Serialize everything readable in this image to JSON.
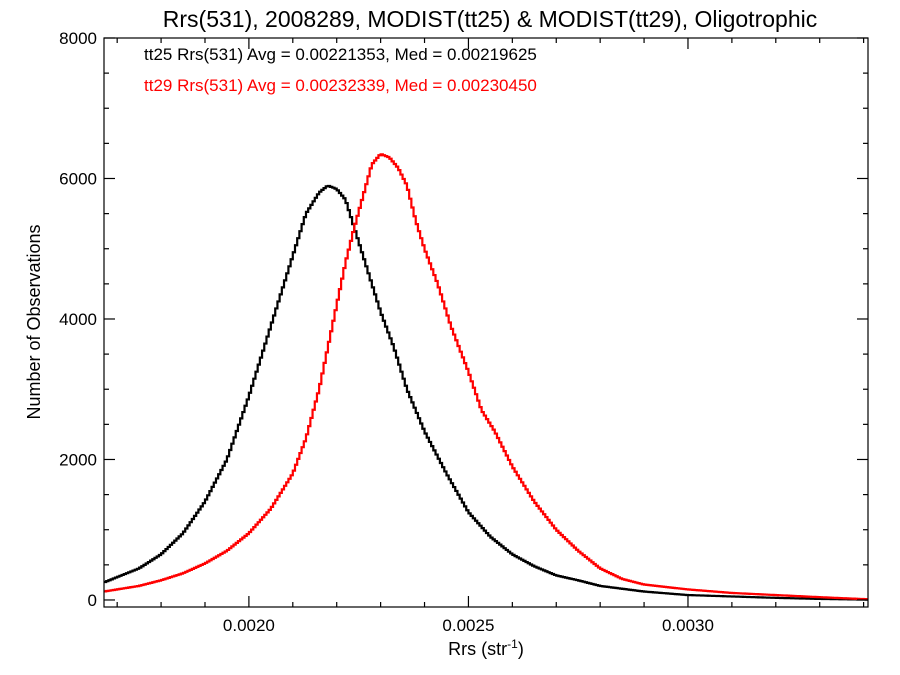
{
  "chart_data": {
    "type": "line",
    "step": true,
    "title": "Rrs(531), 2008289, MODIST(tt25) & MODIST(tt29), Oligotrophic",
    "xlabel": "Rrs (str",
    "xlabel_sup": "-1",
    "xlabel_end": ")",
    "ylabel": "Number of Observations",
    "xlim": [
      0.00167,
      0.00341
    ],
    "ylim": [
      -100,
      8000
    ],
    "xticks": [
      0.002,
      0.0025,
      0.003
    ],
    "xtick_labels": [
      "0.0020",
      "0.0025",
      "0.0030"
    ],
    "yticks": [
      0,
      2000,
      4000,
      6000,
      8000
    ],
    "ytick_labels": [
      "0",
      "2000",
      "4000",
      "6000",
      "8000"
    ],
    "grid": false,
    "legend": "top-left",
    "annotations": [
      {
        "text": "tt25 Rrs(531) Avg = 0.00221353, Med = 0.00219625",
        "color": "#000000"
      },
      {
        "text": "tt29 Rrs(531) Avg = 0.00232339, Med = 0.00230450",
        "color": "#ff0000"
      }
    ],
    "series": [
      {
        "color": "#000000",
        "points": [
          [
            0.00167,
            250
          ],
          [
            0.00175,
            450
          ],
          [
            0.0018,
            650
          ],
          [
            0.00185,
            950
          ],
          [
            0.0019,
            1400
          ],
          [
            0.00195,
            2000
          ],
          [
            0.002,
            2900
          ],
          [
            0.00205,
            3900
          ],
          [
            0.0021,
            4900
          ],
          [
            0.00213,
            5500
          ],
          [
            0.00216,
            5800
          ],
          [
            0.00218,
            5900
          ],
          [
            0.0022,
            5850
          ],
          [
            0.00222,
            5700
          ],
          [
            0.00224,
            5300
          ],
          [
            0.00227,
            4700
          ],
          [
            0.0023,
            4100
          ],
          [
            0.00233,
            3600
          ],
          [
            0.00236,
            3000
          ],
          [
            0.0024,
            2400
          ],
          [
            0.00245,
            1800
          ],
          [
            0.0025,
            1250
          ],
          [
            0.00255,
            900
          ],
          [
            0.0026,
            650
          ],
          [
            0.00265,
            480
          ],
          [
            0.0027,
            350
          ],
          [
            0.00275,
            280
          ],
          [
            0.0028,
            200
          ],
          [
            0.0029,
            120
          ],
          [
            0.003,
            70
          ],
          [
            0.0031,
            50
          ],
          [
            0.0032,
            30
          ],
          [
            0.0033,
            15
          ],
          [
            0.00341,
            5
          ]
        ]
      },
      {
        "color": "#ff0000",
        "points": [
          [
            0.00167,
            120
          ],
          [
            0.00175,
            200
          ],
          [
            0.0018,
            280
          ],
          [
            0.00185,
            380
          ],
          [
            0.0019,
            520
          ],
          [
            0.00195,
            700
          ],
          [
            0.002,
            950
          ],
          [
            0.00205,
            1300
          ],
          [
            0.0021,
            1800
          ],
          [
            0.00213,
            2300
          ],
          [
            0.00216,
            3000
          ],
          [
            0.00218,
            3600
          ],
          [
            0.0022,
            4200
          ],
          [
            0.00222,
            4800
          ],
          [
            0.00224,
            5300
          ],
          [
            0.00226,
            5750
          ],
          [
            0.00228,
            6200
          ],
          [
            0.0023,
            6350
          ],
          [
            0.00232,
            6300
          ],
          [
            0.00234,
            6150
          ],
          [
            0.00236,
            5900
          ],
          [
            0.00238,
            5400
          ],
          [
            0.0024,
            5000
          ],
          [
            0.00243,
            4500
          ],
          [
            0.00246,
            3900
          ],
          [
            0.0025,
            3250
          ],
          [
            0.00253,
            2700
          ],
          [
            0.00256,
            2400
          ],
          [
            0.0026,
            1900
          ],
          [
            0.00265,
            1400
          ],
          [
            0.0027,
            1000
          ],
          [
            0.00275,
            700
          ],
          [
            0.0028,
            450
          ],
          [
            0.00285,
            300
          ],
          [
            0.0029,
            220
          ],
          [
            0.003,
            150
          ],
          [
            0.0031,
            100
          ],
          [
            0.0032,
            70
          ],
          [
            0.0033,
            40
          ],
          [
            0.00341,
            10
          ]
        ]
      }
    ]
  }
}
